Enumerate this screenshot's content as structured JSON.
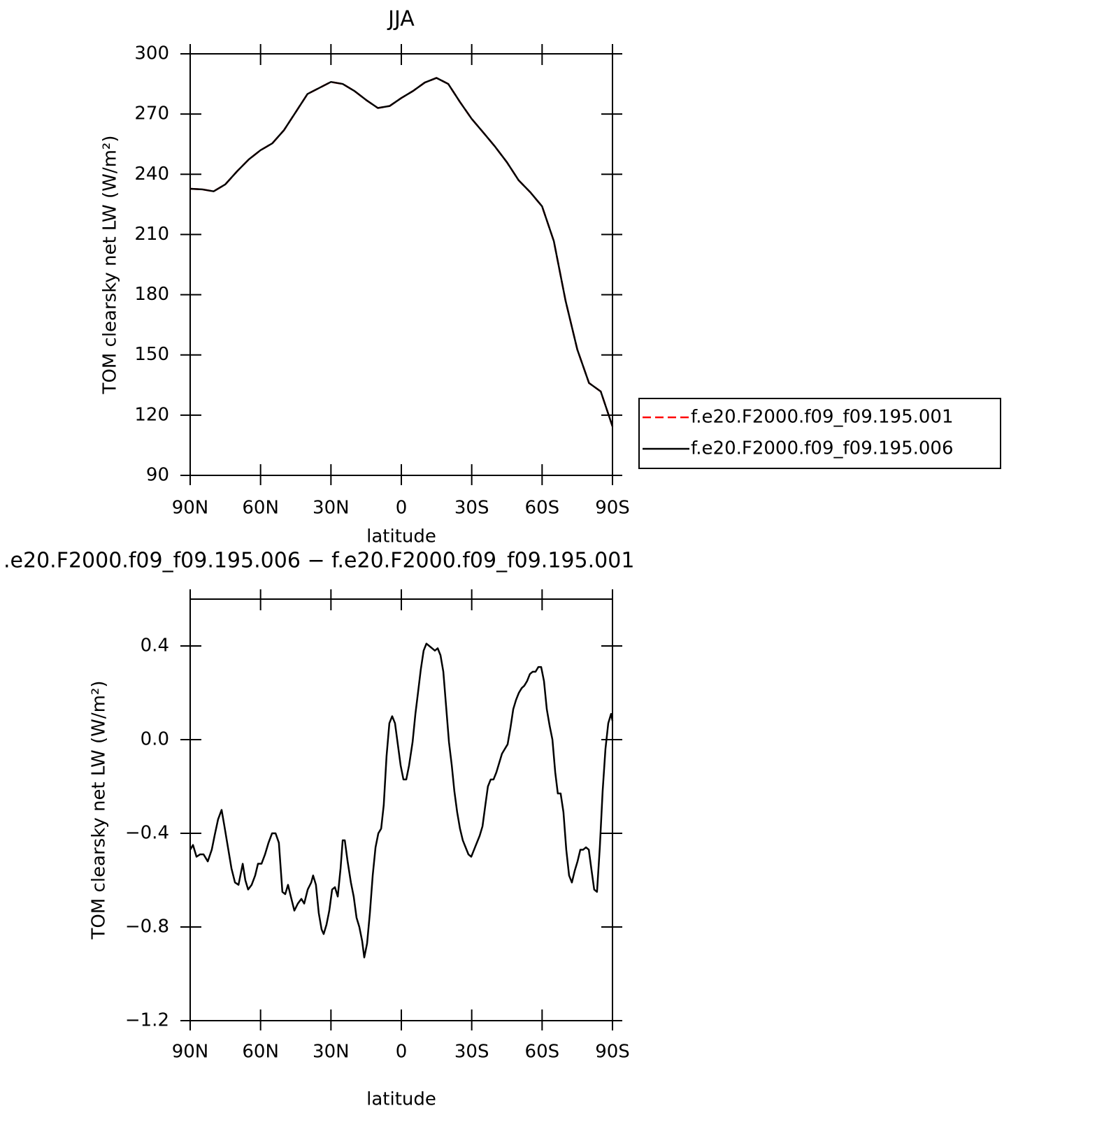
{
  "chart_data": [
    {
      "type": "line",
      "title": "JJA",
      "xlabel": "latitude",
      "ylabel": "TOM clearsky net LW (W/m²)",
      "x": [
        90,
        85,
        80,
        75,
        70,
        65,
        60,
        55,
        50,
        45,
        40,
        35,
        30,
        25,
        20,
        15,
        10,
        5,
        0,
        -5,
        -10,
        -15,
        -20,
        -25,
        -30,
        -35,
        -40,
        -45,
        -50,
        -55,
        -60,
        -65,
        -70,
        -75,
        -80,
        -85,
        -90
      ],
      "series": [
        {
          "name": "f.e20.F2000.f09_f09.195.001",
          "color": "#ff0000",
          "dashed": true,
          "values": [
            232.8,
            232.5,
            231.5,
            235,
            241.5,
            247.4,
            252,
            255.4,
            262,
            271,
            280,
            283,
            286,
            285,
            281.5,
            277,
            273,
            274,
            278,
            281.5,
            285.7,
            288,
            285,
            276,
            267.6,
            260.7,
            253.7,
            246,
            237,
            231,
            224,
            206.7,
            177,
            152.7,
            136,
            131.8,
            114.4
          ]
        },
        {
          "name": "f.e20.F2000.f09_f09.195.006",
          "color": "#000000",
          "dashed": false,
          "values": [
            232.8,
            232.5,
            231.5,
            235,
            241.5,
            247.4,
            252,
            255.4,
            262,
            271,
            280,
            283,
            286,
            285,
            281.5,
            277,
            273,
            274,
            278,
            281.5,
            285.7,
            288,
            285,
            276,
            267.6,
            260.7,
            253.7,
            246,
            237,
            231,
            224,
            206.7,
            177,
            152.7,
            136,
            131.8,
            114.4
          ]
        }
      ],
      "xlim": [
        90,
        -90
      ],
      "xticks": [
        {
          "value": 90,
          "label": "90N"
        },
        {
          "value": 60,
          "label": "60N"
        },
        {
          "value": 30,
          "label": "30N"
        },
        0,
        {
          "value": -30,
          "label": "30S"
        },
        {
          "value": -60,
          "label": "60S"
        },
        {
          "value": -90,
          "label": "90S"
        }
      ],
      "ylim": [
        90,
        300
      ],
      "yticks": [
        90,
        120,
        150,
        180,
        210,
        240,
        270,
        300
      ],
      "legend": "outside-right"
    },
    {
      "type": "line",
      "title": ".e20.F2000.f09_f09.195.006 − f.e20.F2000.f09_f09.195.001",
      "xlabel": "latitude",
      "ylabel": "TOM clearsky net LW (W/m²)",
      "x": [
        90,
        88.8,
        87.3,
        85.8,
        84.3,
        82.5,
        80.8,
        79.6,
        78.1,
        76.6,
        75.4,
        73.9,
        72.4,
        70.9,
        69.4,
        67.6,
        66.5,
        65.3,
        63.8,
        62.3,
        61.1,
        59.6,
        58.1,
        56.6,
        55.1,
        53.6,
        52.2,
        50.7,
        49.5,
        48.3,
        47.1,
        45.6,
        44.1,
        42.6,
        41.4,
        39.9,
        38.4,
        37.6,
        36.4,
        35.2,
        34.0,
        33.1,
        31.9,
        30.7,
        29.5,
        28.3,
        27.1,
        25.9,
        25.0,
        24.1,
        22.9,
        21.5,
        20.3,
        19.1,
        17.9,
        16.7,
        15.8,
        14.6,
        13.4,
        12.2,
        11.0,
        9.8,
        8.6,
        7.5,
        6.3,
        5.1,
        3.9,
        2.7,
        1.5,
        0.3,
        -0.9,
        -2.1,
        -3.3,
        -4.8,
        -6.0,
        -7.1,
        -8.3,
        -9.5,
        -10.7,
        -11.9,
        -13.1,
        -14.3,
        -15.5,
        -16.7,
        -17.9,
        -19.1,
        -20.3,
        -21.5,
        -22.6,
        -23.8,
        -25.0,
        -26.2,
        -27.4,
        -28.6,
        -29.8,
        -31.0,
        -32.2,
        -33.4,
        -34.6,
        -35.8,
        -36.9,
        -38.1,
        -39.3,
        -40.5,
        -41.7,
        -42.9,
        -44.1,
        -45.3,
        -46.5,
        -47.7,
        -48.9,
        -50.1,
        -51.3,
        -52.4,
        -53.6,
        -54.8,
        -56.0,
        -57.2,
        -58.4,
        -59.6,
        -60.8,
        -62.0,
        -63.2,
        -64.4,
        -65.6,
        -66.7,
        -67.9,
        -69.1,
        -70.3,
        -71.5,
        -72.7,
        -73.9,
        -75.1,
        -76.3,
        -77.5,
        -78.7,
        -79.9,
        -81.1,
        -82.2,
        -83.4,
        -84.6,
        -85.8,
        -87.0,
        -88.2,
        -89.4,
        -90
      ],
      "series": [
        {
          "color": "#000000",
          "dashed": false,
          "values": [
            -0.47,
            -0.45,
            -0.5,
            -0.49,
            -0.49,
            -0.52,
            -0.47,
            -0.41,
            -0.34,
            -0.3,
            -0.37,
            -0.46,
            -0.55,
            -0.61,
            -0.62,
            -0.53,
            -0.6,
            -0.64,
            -0.62,
            -0.58,
            -0.53,
            -0.53,
            -0.49,
            -0.44,
            -0.4,
            -0.4,
            -0.44,
            -0.65,
            -0.66,
            -0.62,
            -0.67,
            -0.73,
            -0.7,
            -0.68,
            -0.7,
            -0.64,
            -0.61,
            -0.58,
            -0.62,
            -0.74,
            -0.81,
            -0.83,
            -0.79,
            -0.73,
            -0.64,
            -0.63,
            -0.67,
            -0.55,
            -0.43,
            -0.43,
            -0.52,
            -0.61,
            -0.67,
            -0.76,
            -0.8,
            -0.86,
            -0.93,
            -0.87,
            -0.74,
            -0.58,
            -0.46,
            -0.4,
            -0.38,
            -0.28,
            -0.07,
            0.07,
            0.1,
            0.07,
            -0.02,
            -0.11,
            -0.17,
            -0.17,
            -0.11,
            -0.01,
            0.11,
            0.2,
            0.3,
            0.38,
            0.41,
            0.4,
            0.39,
            0.38,
            0.39,
            0.36,
            0.29,
            0.14,
            -0.01,
            -0.11,
            -0.22,
            -0.31,
            -0.38,
            -0.43,
            -0.46,
            -0.49,
            -0.5,
            -0.47,
            -0.44,
            -0.41,
            -0.37,
            -0.28,
            -0.2,
            -0.17,
            -0.17,
            -0.14,
            -0.1,
            -0.06,
            -0.04,
            -0.02,
            0.05,
            0.13,
            0.17,
            0.2,
            0.22,
            0.23,
            0.25,
            0.28,
            0.29,
            0.29,
            0.31,
            0.31,
            0.25,
            0.13,
            0.06,
            0.0,
            -0.14,
            -0.23,
            -0.23,
            -0.31,
            -0.47,
            -0.58,
            -0.61,
            -0.56,
            -0.52,
            -0.47,
            -0.47,
            -0.46,
            -0.47,
            -0.56,
            -0.64,
            -0.65,
            -0.46,
            -0.22,
            -0.04,
            0.07,
            0.11,
            0.08
          ]
        }
      ],
      "xlim": [
        90,
        -90
      ],
      "xticks": [
        {
          "value": 90,
          "label": "90N"
        },
        {
          "value": 60,
          "label": "60N"
        },
        {
          "value": 30,
          "label": "30N"
        },
        0,
        {
          "value": -30,
          "label": "30S"
        },
        {
          "value": -60,
          "label": "60S"
        },
        {
          "value": -90,
          "label": "90S"
        }
      ],
      "ylim": [
        -1.2,
        0.6
      ],
      "yticks": [
        {
          "value": -1.2,
          "label": "−1.2"
        },
        {
          "value": -0.8,
          "label": "−0.8"
        },
        {
          "value": -0.4,
          "label": "−0.4"
        },
        {
          "value": 0,
          "label": "0.0"
        },
        0.4
      ]
    }
  ]
}
